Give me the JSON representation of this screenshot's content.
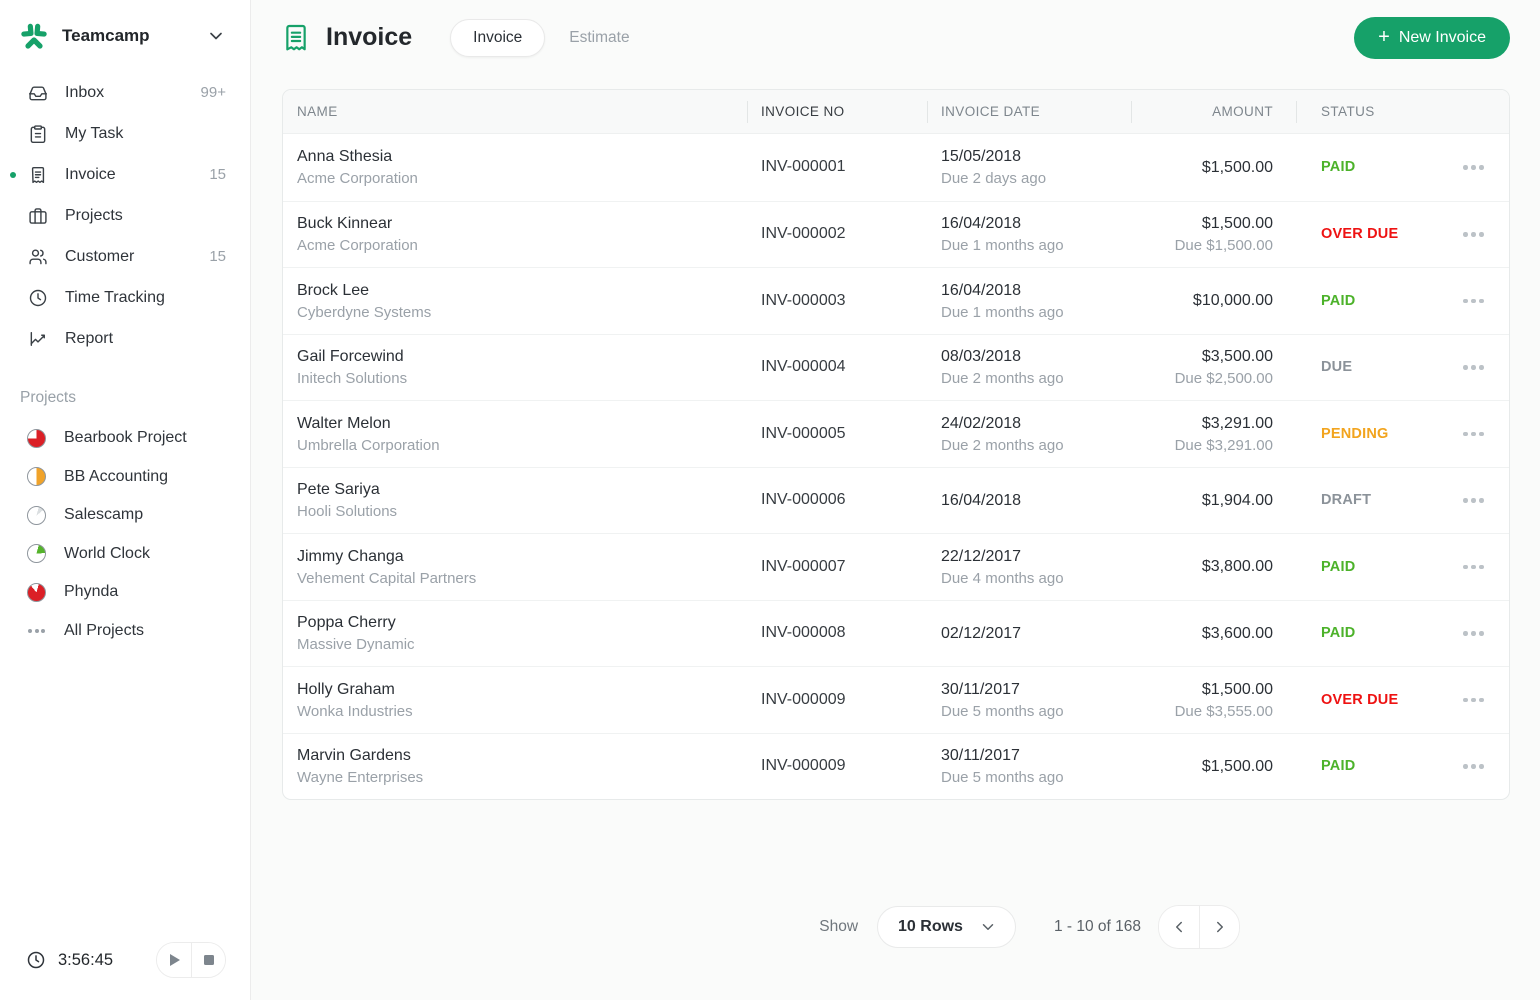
{
  "colors": {
    "brand": "#16a169",
    "paid": "#4cb22a",
    "overdue": "#ee1212",
    "pending": "#f2a41e",
    "muted_status": "#8b9299"
  },
  "brand": {
    "name": "Teamcamp"
  },
  "sidebar": {
    "items": [
      {
        "label": "Inbox",
        "badge": "99+",
        "icon": "inbox-icon",
        "active": false
      },
      {
        "label": "My Task",
        "badge": "",
        "icon": "task-icon",
        "active": false
      },
      {
        "label": "Invoice",
        "badge": "15",
        "icon": "invoice-icon",
        "active": true
      },
      {
        "label": "Projects",
        "badge": "",
        "icon": "briefcase-icon",
        "active": false
      },
      {
        "label": "Customer",
        "badge": "15",
        "icon": "users-icon",
        "active": false
      },
      {
        "label": "Time Tracking",
        "badge": "",
        "icon": "clock-icon",
        "active": false
      },
      {
        "label": "Report",
        "badge": "",
        "icon": "chart-icon",
        "active": false
      }
    ],
    "projects_header": "Projects",
    "projects": [
      {
        "label": "Bearbook Project",
        "pie": {
          "color": "#db1f26",
          "percent": 75,
          "from": 0
        }
      },
      {
        "label": "BB Accounting",
        "pie": {
          "color": "#f0a32a",
          "percent": 50,
          "from": 0
        }
      },
      {
        "label": "Salescamp",
        "pie": {
          "color": "#dadee0",
          "percent": 10,
          "from": 15
        }
      },
      {
        "label": "World Clock",
        "pie": {
          "color": "#55b32b",
          "percent": 20,
          "from": 15
        }
      },
      {
        "label": "Phynda",
        "pie": {
          "color": "#db1f26",
          "percent": 85,
          "from": 15
        }
      },
      {
        "label": "All Projects",
        "pie": null
      }
    ],
    "timer": {
      "time": "3:56:45"
    }
  },
  "header": {
    "title": "Invoice",
    "tabs": [
      {
        "label": "Invoice",
        "active": true
      },
      {
        "label": "Estimate",
        "active": false
      }
    ],
    "new_invoice_label": "New Invoice",
    "plus_glyph": "+"
  },
  "table": {
    "columns": [
      "NAME",
      "INVOICE NO",
      "INVOICE DATE",
      "AMOUNT",
      "STATUS"
    ],
    "rows": [
      {
        "name": "Anna Sthesia",
        "company": "Acme Corporation",
        "invoice_no": "INV-000001",
        "date": "15/05/2018",
        "date_sub": "Due 2 days ago",
        "amount": "$1,500.00",
        "amount_sub": "",
        "status": "PAID",
        "status_type": "paid"
      },
      {
        "name": "Buck Kinnear",
        "company": "Acme Corporation",
        "invoice_no": "INV-000002",
        "date": "16/04/2018",
        "date_sub": "Due 1 months ago",
        "amount": "$1,500.00",
        "amount_sub": "Due $1,500.00",
        "status": "OVER DUE",
        "status_type": "overdue"
      },
      {
        "name": "Brock Lee",
        "company": "Cyberdyne Systems",
        "invoice_no": "INV-000003",
        "date": "16/04/2018",
        "date_sub": "Due 1 months ago",
        "amount": "$10,000.00",
        "amount_sub": "",
        "status": "PAID",
        "status_type": "paid"
      },
      {
        "name": "Gail Forcewind",
        "company": "Initech Solutions",
        "invoice_no": "INV-000004",
        "date": "08/03/2018",
        "date_sub": "Due 2 months ago",
        "amount": "$3,500.00",
        "amount_sub": "Due $2,500.00",
        "status": "DUE",
        "status_type": "due"
      },
      {
        "name": "Walter Melon",
        "company": "Umbrella Corporation",
        "invoice_no": "INV-000005",
        "date": "24/02/2018",
        "date_sub": "Due 2 months ago",
        "amount": "$3,291.00",
        "amount_sub": "Due $3,291.00",
        "status": "PENDING",
        "status_type": "pending"
      },
      {
        "name": "Pete Sariya",
        "company": "Hooli Solutions",
        "invoice_no": "INV-000006",
        "date": "16/04/2018",
        "date_sub": "",
        "amount": "$1,904.00",
        "amount_sub": "",
        "status": "DRAFT",
        "status_type": "draft"
      },
      {
        "name": "Jimmy Changa",
        "company": "Vehement Capital Partners",
        "invoice_no": "INV-000007",
        "date": "22/12/2017",
        "date_sub": "Due 4 months ago",
        "amount": "$3,800.00",
        "amount_sub": "",
        "status": "PAID",
        "status_type": "paid"
      },
      {
        "name": "Poppa Cherry",
        "company": "Massive Dynamic",
        "invoice_no": "INV-000008",
        "date": "02/12/2017",
        "date_sub": "",
        "amount": "$3,600.00",
        "amount_sub": "",
        "status": "PAID",
        "status_type": "paid"
      },
      {
        "name": "Holly Graham",
        "company": "Wonka Industries",
        "invoice_no": "INV-000009",
        "date": "30/11/2017",
        "date_sub": "Due 5 months ago",
        "amount": "$1,500.00",
        "amount_sub": "Due $3,555.00",
        "status": "OVER DUE",
        "status_type": "overdue"
      },
      {
        "name": "Marvin Gardens",
        "company": "Wayne Enterprises",
        "invoice_no": "INV-000009",
        "date": "30/11/2017",
        "date_sub": "Due 5 months ago",
        "amount": "$1,500.00",
        "amount_sub": "",
        "status": "PAID",
        "status_type": "paid"
      }
    ]
  },
  "pagination": {
    "show_label": "Show",
    "rows_per_page": "10 Rows",
    "range": "1 - 10 of 168"
  }
}
